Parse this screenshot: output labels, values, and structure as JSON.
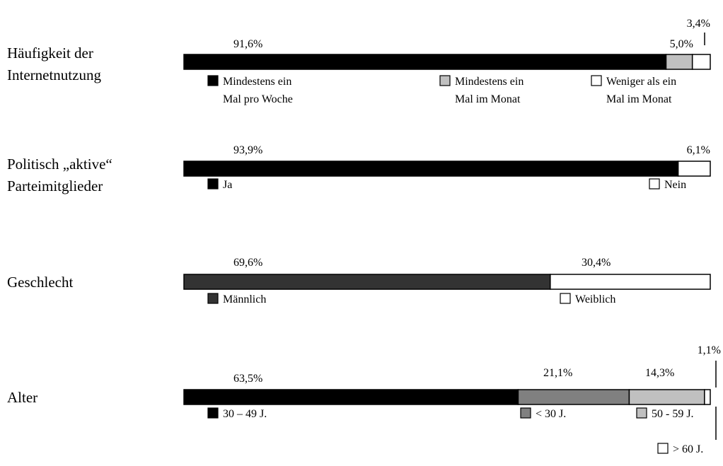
{
  "chart_data": {
    "type": "bar",
    "stacked": true,
    "orientation": "horizontal",
    "xlim": [
      0,
      100
    ],
    "rows": [
      {
        "label": [
          "Häufigkeit der",
          "Internetnutzung"
        ],
        "segments": [
          {
            "value": 91.6,
            "value_label": "91,6%",
            "color": "#000000",
            "legend": [
              "Mindestens ein",
              "Mal pro Woche"
            ]
          },
          {
            "value": 5.0,
            "value_label": "5,0%",
            "color": "#c0c0c0",
            "legend": [
              "Mindestens ein",
              "Mal im Monat"
            ]
          },
          {
            "value": 3.4,
            "value_label": "3,4%",
            "color": "#ffffff",
            "legend": [
              "Weniger als ein",
              "Mal im Monat"
            ]
          }
        ]
      },
      {
        "label": [
          "Politisch „aktive“",
          "Parteimitglieder"
        ],
        "segments": [
          {
            "value": 93.9,
            "value_label": "93,9%",
            "color": "#000000",
            "legend": [
              "Ja"
            ]
          },
          {
            "value": 6.1,
            "value_label": "6,1%",
            "color": "#ffffff",
            "legend": [
              "Nein"
            ]
          }
        ]
      },
      {
        "label": [
          "Geschlecht"
        ],
        "segments": [
          {
            "value": 69.6,
            "value_label": "69,6%",
            "color": "#333333",
            "legend": [
              "Männlich"
            ]
          },
          {
            "value": 30.4,
            "value_label": "30,4%",
            "color": "#ffffff",
            "legend": [
              "Weiblich"
            ]
          }
        ]
      },
      {
        "label": [
          "Alter"
        ],
        "segments": [
          {
            "value": 63.5,
            "value_label": "63,5%",
            "color": "#000000",
            "legend": [
              "30 – 49 J."
            ]
          },
          {
            "value": 21.1,
            "value_label": "21,1%",
            "color": "#808080",
            "legend": [
              "< 30 J."
            ]
          },
          {
            "value": 14.3,
            "value_label": "14,3%",
            "color": "#c0c0c0",
            "legend": [
              "50 - 59 J."
            ]
          },
          {
            "value": 1.1,
            "value_label": "1,1%",
            "color": "#ffffff",
            "legend": [
              "> 60 J."
            ]
          }
        ]
      }
    ]
  }
}
